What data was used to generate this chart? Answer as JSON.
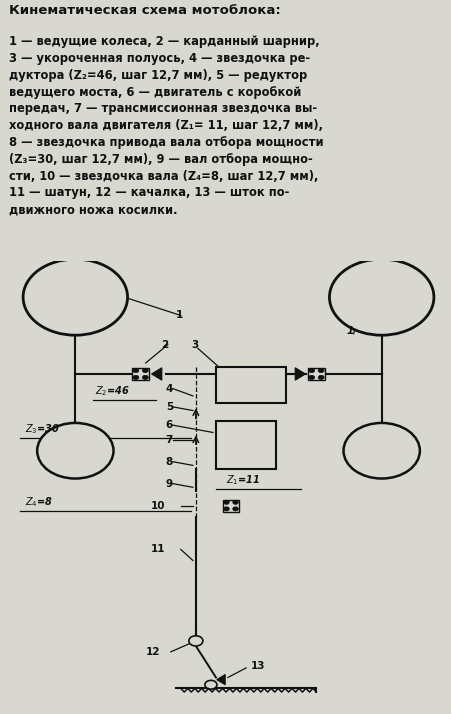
{
  "title": "Кинематическая схема мотоблока:",
  "desc_lines": [
    "1 — ведущие колеса, 2 — карданный шарнир,",
    "3 — укороченная полуось, 4 — звездочка ре-",
    "дуктора (Z₂=46, шаг 12,7 мм), 5 — редуктор",
    "ведущего моста, 6 — двигатель с коробкой",
    "передач, 7 — трансмиссионная звездочка вы-",
    "ходного вала двигателя (Z₁= 11, шаг 12,7 мм),",
    "8 — звездочка привода вала отбора мощности",
    "(Z₃=30, шаг 12,7 мм), 9 — вал отбора мощно-",
    "сти, 10 — звездочка вала (Z₄=8, шаг 12,7 мм),",
    "11 — шатун, 12 — качалка, 13 — шток по-",
    "движного ножа косилки."
  ],
  "bg_color": "#d8d8d0",
  "col": "#111111",
  "white": "#d8d8d0"
}
